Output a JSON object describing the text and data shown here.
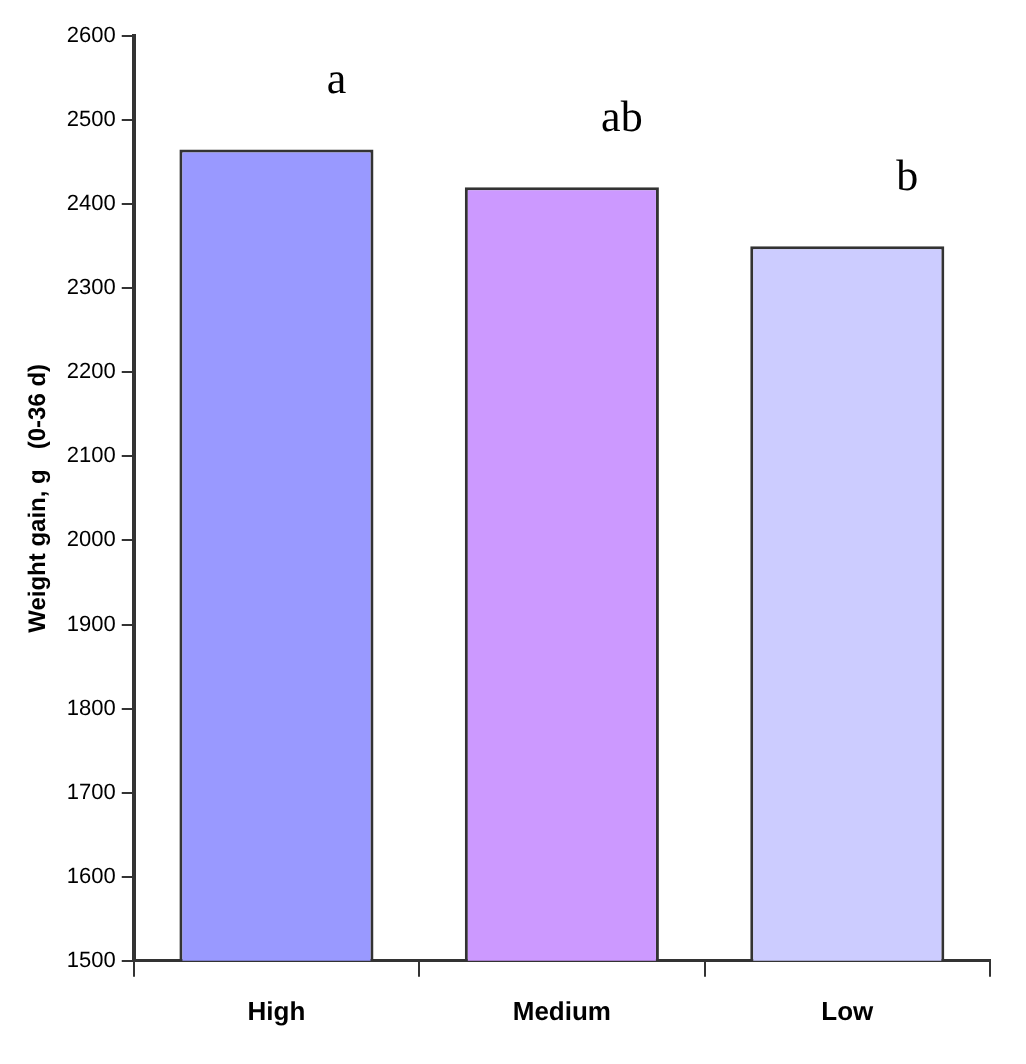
{
  "chart_data": {
    "type": "bar",
    "ylabel": "Weight gain, g   (0-36 d)",
    "categories": [
      "High",
      "Medium",
      "Low"
    ],
    "values": [
      2465,
      2420,
      2350
    ],
    "colors": [
      "#9999ff",
      "#cc99ff",
      "#ccccff"
    ],
    "ylim": [
      1500,
      2600
    ],
    "yticks": [
      1500,
      1600,
      1700,
      1800,
      1900,
      2000,
      2100,
      2200,
      2300,
      2400,
      2500,
      2600
    ],
    "grid": false,
    "legend": false,
    "annotations": [
      "a",
      "ab",
      "b"
    ]
  }
}
